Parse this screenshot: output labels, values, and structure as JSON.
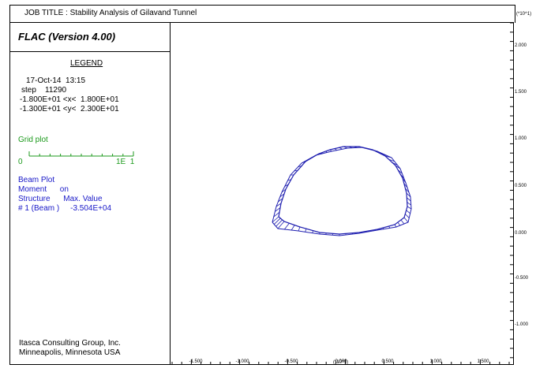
{
  "header": {
    "job_title": "JOB TITLE : Stability Analysis of Gilavand Tunnel"
  },
  "panel": {
    "program": "FLAC (Version 4.00)",
    "legend_title": "LEGEND",
    "date": "17-Oct-14  13:15",
    "step": "step    11290",
    "x_range": "-1.800E+01 <x<  1.800E+01",
    "y_range": "-1.300E+01 <y<  2.300E+01",
    "grid_plot_label": "Grid plot",
    "grid_scale_start": "0",
    "grid_scale_end": "1E  1",
    "beam_plot": "Beam Plot",
    "moment": "Moment      on",
    "structure_header": "Structure      Max. Value",
    "beam_entry": "# 1 (Beam )     -3.504E+04"
  },
  "footer": {
    "line1": "Itasca Consulting Group, Inc.",
    "line2": "Minneapolis, Minnesota  USA"
  },
  "axes": {
    "y_multiplier": "(*10^1)",
    "x_multiplier": "(*10^1)",
    "x_ticks": [
      "-1.500",
      "-1.000",
      "-0.500",
      "0.000",
      "0.500",
      "1.000",
      "1.500"
    ],
    "y_ticks": [
      "2.000",
      "1.500",
      "1.000",
      "0.500",
      "0.000",
      "-0.500",
      "-1.000"
    ]
  },
  "colors": {
    "beam": "#2020b0",
    "grid_text": "#1c9a1c",
    "beam_text": "#1818c8"
  }
}
